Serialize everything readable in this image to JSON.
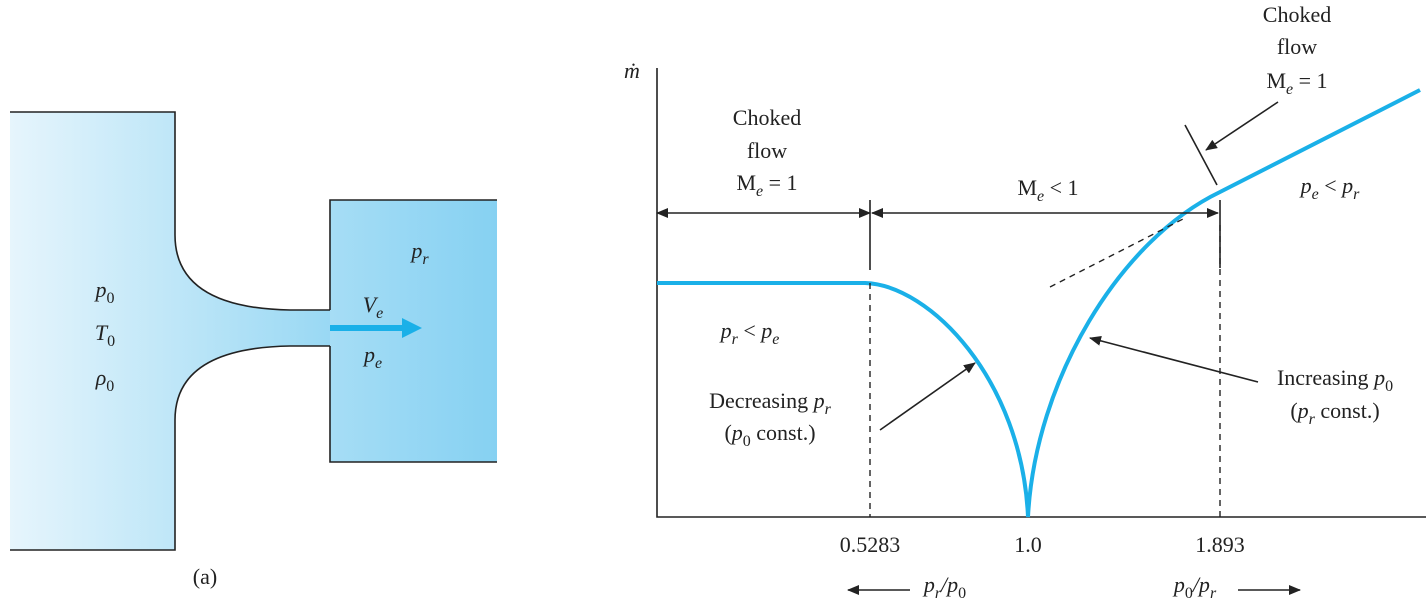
{
  "labels": [
    [
      {
        "v": "ṁ"
      }
    ],
    [
      {
        "t": "Choked"
      }
    ],
    [
      {
        "t": "flow"
      }
    ],
    [
      {
        "t": "M"
      },
      {
        "sub": "e"
      },
      {
        "t": " = 1"
      }
    ],
    [
      {
        "t": "M"
      },
      {
        "sub": "e"
      },
      {
        "t": " < 1"
      }
    ],
    [
      {
        "t": "Choked"
      }
    ],
    [
      {
        "t": "flow"
      }
    ],
    [
      {
        "t": "M"
      },
      {
        "sub": "e"
      },
      {
        "t": " = 1"
      }
    ],
    [
      {
        "v": "p"
      },
      {
        "sub": "e"
      },
      {
        "t": " < "
      },
      {
        "v": "p"
      },
      {
        "sub": "r"
      }
    ],
    [
      {
        "v": "p"
      },
      {
        "sub": "r"
      },
      {
        "t": " < "
      },
      {
        "v": "p"
      },
      {
        "sub": "e"
      }
    ],
    [
      {
        "t": "Decreasing "
      },
      {
        "v": "p"
      },
      {
        "sub": "r"
      }
    ],
    [
      {
        "t": "("
      },
      {
        "v": "p"
      },
      {
        "sub": "0"
      },
      {
        "t": " const.)"
      }
    ],
    [
      {
        "t": "Increasing "
      },
      {
        "v": "p"
      },
      {
        "sub": "0"
      }
    ],
    [
      {
        "t": "("
      },
      {
        "v": "p"
      },
      {
        "sub": "r"
      },
      {
        "t": " const.)"
      }
    ],
    [
      {
        "t": "0.5283"
      }
    ],
    [
      {
        "t": "1.0"
      }
    ],
    [
      {
        "t": "1.893"
      }
    ],
    [
      {
        "v": "p"
      },
      {
        "sub": "r"
      },
      {
        "v": "/p"
      },
      {
        "sub": "0"
      }
    ],
    [
      {
        "v": "p"
      },
      {
        "sub": "0"
      },
      {
        "v": "/p"
      },
      {
        "sub": "r"
      }
    ],
    [
      {
        "v": "p"
      },
      {
        "sub": "0"
      }
    ],
    [
      {
        "v": "T"
      },
      {
        "sub": "0"
      }
    ],
    [
      {
        "v": "ρ"
      },
      {
        "sub": "0"
      }
    ],
    [
      {
        "v": "p"
      },
      {
        "sub": "r"
      }
    ],
    [
      {
        "v": "V"
      },
      {
        "sub": "e"
      }
    ],
    [
      {
        "v": "p"
      },
      {
        "sub": "e"
      }
    ],
    [
      {
        "t": "(a)"
      }
    ]
  ]
}
